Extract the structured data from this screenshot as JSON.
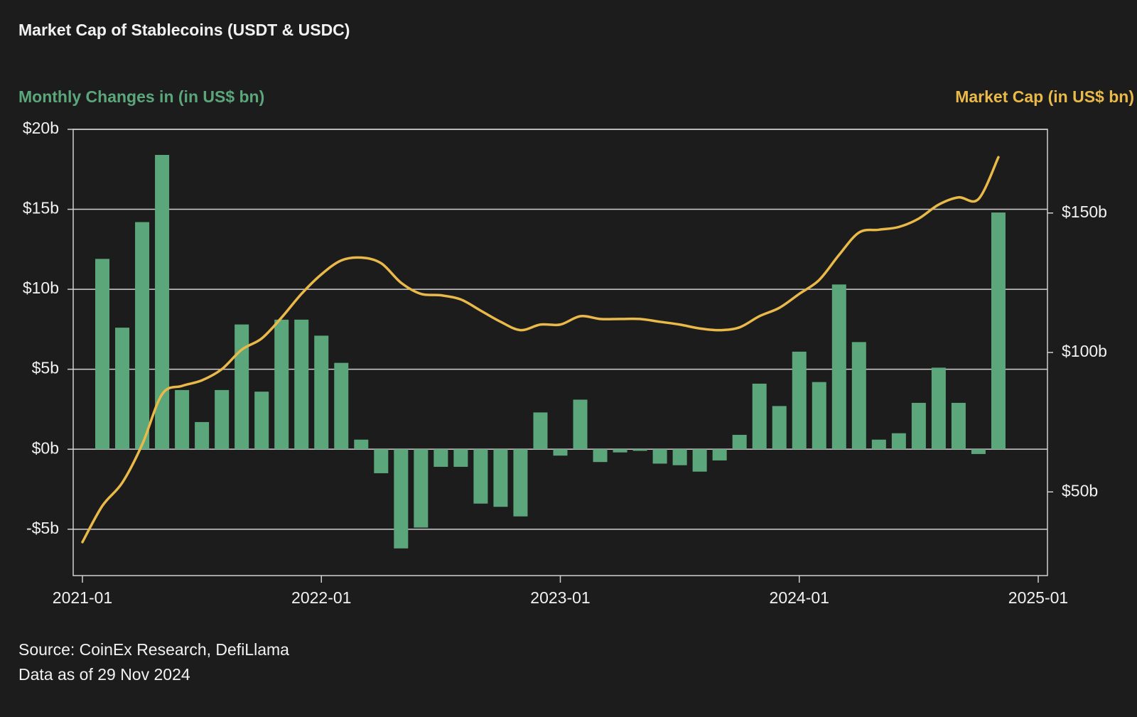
{
  "chart_data": {
    "type": "combo",
    "title": "Market Cap of Stablecoins (USDT & USDC)",
    "y_label": "Monthly Changes in (in US$ bn)",
    "y2_label": "Market Cap (in US$ bn)",
    "source": "Source: CoinEx Research, DefiLlama",
    "note": "Data as of 29 Nov 2024",
    "x": [
      "2021-01",
      "2021-02",
      "2021-03",
      "2021-04",
      "2021-05",
      "2021-06",
      "2021-07",
      "2021-08",
      "2021-09",
      "2021-10",
      "2021-11",
      "2021-12",
      "2022-01",
      "2022-02",
      "2022-03",
      "2022-04",
      "2022-05",
      "2022-06",
      "2022-07",
      "2022-08",
      "2022-09",
      "2022-10",
      "2022-11",
      "2022-12",
      "2023-01",
      "2023-02",
      "2023-03",
      "2023-04",
      "2023-05",
      "2023-06",
      "2023-07",
      "2023-08",
      "2023-09",
      "2023-10",
      "2023-11",
      "2023-12",
      "2024-01",
      "2024-02",
      "2024-03",
      "2024-04",
      "2024-05",
      "2024-06",
      "2024-07",
      "2024-08",
      "2024-09",
      "2024-10",
      "2024-11"
    ],
    "series": [
      {
        "type": "bar",
        "color": "#5ba77b",
        "values": [
          null,
          11.9,
          7.6,
          14.2,
          18.4,
          3.7,
          1.7,
          3.7,
          7.8,
          3.6,
          8.1,
          8.1,
          7.1,
          5.4,
          0.6,
          -1.5,
          -6.2,
          -4.9,
          -1.1,
          -1.1,
          -3.4,
          -3.6,
          -4.2,
          2.3,
          -0.4,
          3.1,
          -0.8,
          -0.2,
          -0.1,
          -0.9,
          -1.0,
          -1.4,
          -0.7,
          0.9,
          4.1,
          2.7,
          6.1,
          4.2,
          10.3,
          6.7,
          0.6,
          1.0,
          2.9,
          5.1,
          2.9,
          -0.3,
          14.8
        ]
      },
      {
        "type": "line",
        "axis": "y2",
        "color": "#e9b949",
        "values": [
          32,
          45,
          53.3,
          67,
          85,
          88,
          90,
          94,
          101,
          105,
          112.5,
          121,
          128,
          133,
          134,
          132,
          125,
          121,
          120.5,
          119,
          115,
          111,
          108,
          110,
          110,
          113,
          112,
          112,
          112,
          111,
          110,
          108.6,
          108,
          109,
          113,
          116,
          121,
          126,
          135,
          143,
          144,
          145,
          148,
          153,
          155.6,
          155,
          170
        ]
      }
    ],
    "xticks": [
      "2021-01",
      "2022-01",
      "2023-01",
      "2024-01",
      "2025-01"
    ],
    "ylim": [
      -7.9,
      20
    ],
    "yticks": [
      {
        "value": -5,
        "label": "-$5b"
      },
      {
        "value": 0,
        "label": "$0b"
      },
      {
        "value": 5,
        "label": "$5b"
      },
      {
        "value": 10,
        "label": "$10b"
      },
      {
        "value": 15,
        "label": "$15b"
      },
      {
        "value": 20,
        "label": "$20b"
      }
    ],
    "y2lim": [
      20,
      180
    ],
    "y2ticks": [
      {
        "value": 50,
        "label": "$50b"
      },
      {
        "value": 100,
        "label": "$100b"
      },
      {
        "value": 150,
        "label": "$150b"
      }
    ],
    "grid": true
  }
}
